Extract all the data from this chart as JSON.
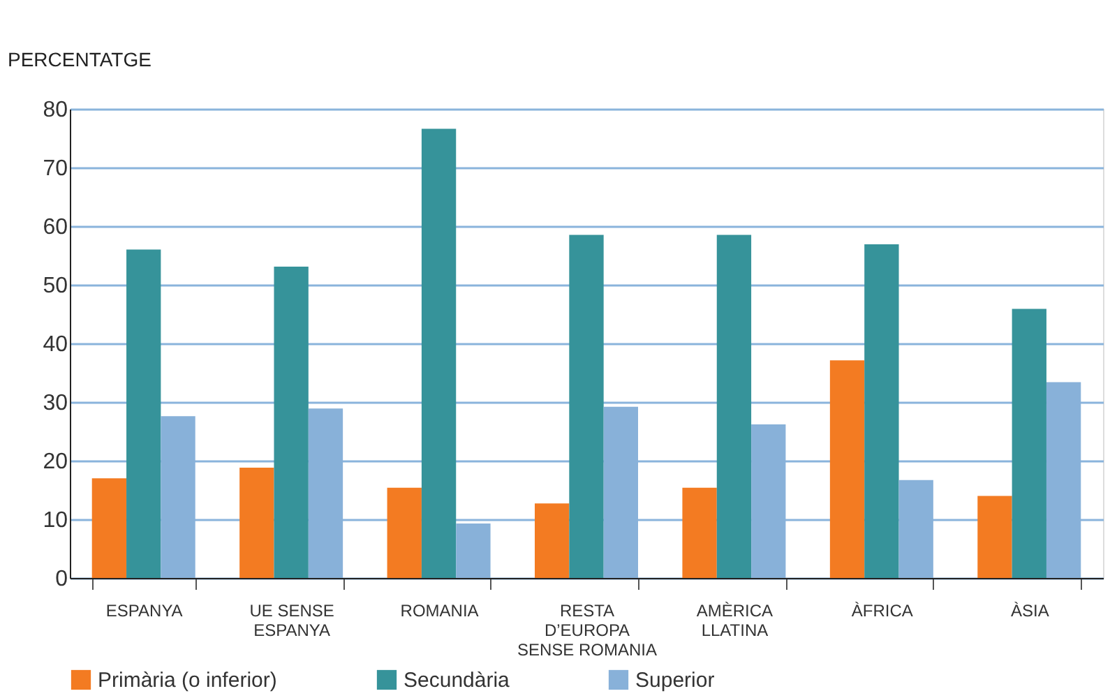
{
  "chart_data": {
    "type": "bar",
    "ylabel": "PERCENTATGE",
    "categories": [
      "ESPANYA",
      "UE SENSE ESPANYA",
      "ROMANIA",
      "RESTA D’EUROPA SENSE ROMANIA",
      "AMÈRICA LLATINA",
      "ÀFRICA",
      "ÀSIA"
    ],
    "series": [
      {
        "name": "Primària (o inferior)",
        "color": "#f37b22",
        "values": [
          17,
          18.8,
          15.4,
          12.7,
          15.4,
          37.1,
          14
        ]
      },
      {
        "name": "Secundària",
        "color": "#36939a",
        "values": [
          56,
          53.1,
          76.6,
          58.5,
          58.5,
          56.9,
          45.9
        ]
      },
      {
        "name": "Superior",
        "color": "#88b1d9",
        "values": [
          27.6,
          28.9,
          9.3,
          29.2,
          26.2,
          16.7,
          33.4
        ]
      }
    ],
    "ylim": [
      0,
      80
    ],
    "yticks": [
      0,
      10,
      20,
      30,
      40,
      50,
      60,
      70,
      80
    ],
    "grid": "y",
    "legend": "bottom"
  }
}
